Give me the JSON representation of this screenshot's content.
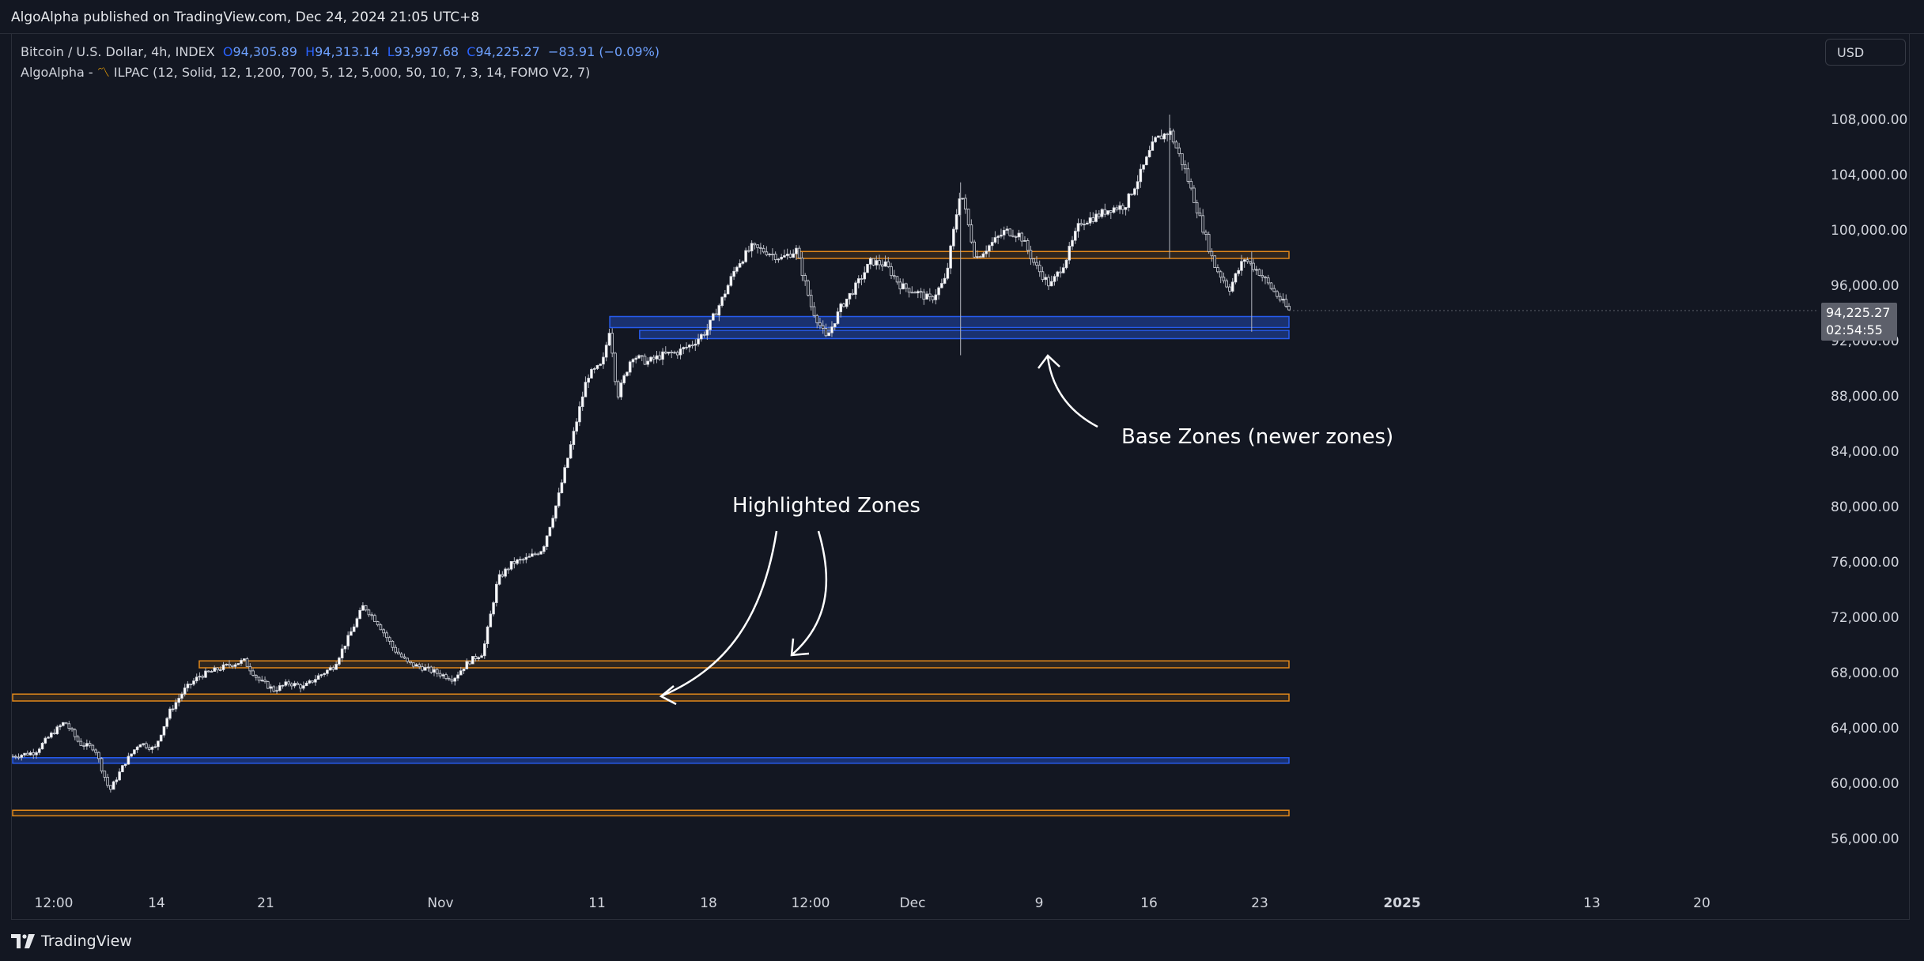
{
  "header": {
    "published": "AlgoAlpha published on TradingView.com, Dec 24, 2024 21:05 UTC+8"
  },
  "legend": {
    "symbol": "Bitcoin / U.S. Dollar, 4h, INDEX",
    "open_label": "O",
    "open": "94,305.89",
    "high_label": "H",
    "high": "94,313.14",
    "low_label": "L",
    "low": "93,997.68",
    "close_label": "C",
    "close": "94,225.27",
    "change": "−83.91 (−0.09%)",
    "indicator_prefix": "AlgoAlpha -",
    "indicator_icon": "indicator-wave-icon",
    "indicator": "ILPAC (12, Solid, 12, 1,200, 700, 5, 12, 5,000, 50, 10, 7, 3, 14, FOMO V2, 7)"
  },
  "toolbar": {
    "currency": "USD"
  },
  "price_axis": {
    "labels": [
      "108,000.00",
      "104,000.00",
      "100,000.00",
      "96,000.00",
      "92,000.00",
      "88,000.00",
      "84,000.00",
      "80,000.00",
      "76,000.00",
      "72,000.00",
      "68,000.00",
      "64,000.00",
      "60,000.00",
      "56,000.00"
    ]
  },
  "last_price": {
    "price": "94,225.27",
    "countdown": "02:54:55"
  },
  "time_axis": {
    "labels": [
      {
        "text": "12:00",
        "bold": false
      },
      {
        "text": "14",
        "bold": false
      },
      {
        "text": "21",
        "bold": false
      },
      {
        "text": "Nov",
        "bold": false
      },
      {
        "text": "11",
        "bold": false
      },
      {
        "text": "18",
        "bold": false
      },
      {
        "text": "12:00",
        "bold": false
      },
      {
        "text": "Dec",
        "bold": false
      },
      {
        "text": "9",
        "bold": false
      },
      {
        "text": "16",
        "bold": false
      },
      {
        "text": "23",
        "bold": false
      },
      {
        "text": "2025",
        "bold": true
      },
      {
        "text": "13",
        "bold": false
      },
      {
        "text": "20",
        "bold": false
      }
    ]
  },
  "annotations": {
    "highlighted": "Highlighted Zones",
    "base": "Base Zones (newer zones)"
  },
  "footer": {
    "brand": "TradingView"
  },
  "colors": {
    "background": "#131722",
    "highlighted_zone": "#f7931a",
    "base_zone": "#2962ff",
    "candle": "#d1d4dc"
  },
  "chart_data": {
    "type": "candlestick",
    "title": "Bitcoin / U.S. Dollar, 4h, INDEX",
    "ylim": [
      53000,
      112000
    ],
    "price_path": [
      [
        0,
        62000
      ],
      [
        3,
        62300
      ],
      [
        5,
        63500
      ],
      [
        7,
        64500
      ],
      [
        9,
        62900
      ],
      [
        11,
        62600
      ],
      [
        12,
        61000
      ],
      [
        13,
        59500
      ],
      [
        15,
        61500
      ],
      [
        17,
        63000
      ],
      [
        19,
        62500
      ],
      [
        21,
        65200
      ],
      [
        23,
        66800
      ],
      [
        25,
        67800
      ],
      [
        27,
        68200
      ],
      [
        29,
        68600
      ],
      [
        31,
        68900
      ],
      [
        33,
        67500
      ],
      [
        35,
        66800
      ],
      [
        37,
        67300
      ],
      [
        39,
        67000
      ],
      [
        41,
        67800
      ],
      [
        43,
        68500
      ],
      [
        45,
        70600
      ],
      [
        47,
        72900
      ],
      [
        49,
        71600
      ],
      [
        51,
        69800
      ],
      [
        53,
        68700
      ],
      [
        55,
        68400
      ],
      [
        57,
        68000
      ],
      [
        59,
        67600
      ],
      [
        61,
        68800
      ],
      [
        63,
        69500
      ],
      [
        65,
        74800
      ],
      [
        67,
        76000
      ],
      [
        69,
        76300
      ],
      [
        71,
        77000
      ],
      [
        73,
        80500
      ],
      [
        75,
        85000
      ],
      [
        77,
        89500
      ],
      [
        79,
        90300
      ],
      [
        80,
        93000
      ],
      [
        81,
        88000
      ],
      [
        83,
        91000
      ],
      [
        85,
        90500
      ],
      [
        87,
        91000
      ],
      [
        89,
        91200
      ],
      [
        91,
        91800
      ],
      [
        93,
        92800
      ],
      [
        95,
        95000
      ],
      [
        97,
        97500
      ],
      [
        99,
        98800
      ],
      [
        101,
        98500
      ],
      [
        103,
        98000
      ],
      [
        105,
        98600
      ],
      [
        107,
        94500
      ],
      [
        109,
        92200
      ],
      [
        111,
        94500
      ],
      [
        113,
        96000
      ],
      [
        115,
        97800
      ],
      [
        117,
        97500
      ],
      [
        119,
        96000
      ],
      [
        121,
        95600
      ],
      [
        123,
        95000
      ],
      [
        125,
        96500
      ],
      [
        127,
        103000
      ],
      [
        129,
        98000
      ],
      [
        131,
        99000
      ],
      [
        133,
        100000
      ],
      [
        135,
        99700
      ],
      [
        137,
        97500
      ],
      [
        139,
        96000
      ],
      [
        141,
        97800
      ],
      [
        143,
        100600
      ],
      [
        145,
        101000
      ],
      [
        147,
        101600
      ],
      [
        149,
        101800
      ],
      [
        151,
        104000
      ],
      [
        153,
        106500
      ],
      [
        155,
        107200
      ],
      [
        157,
        104500
      ],
      [
        159,
        101000
      ],
      [
        161,
        97500
      ],
      [
        163,
        95800
      ],
      [
        165,
        98000
      ],
      [
        167,
        97000
      ],
      [
        169,
        95600
      ],
      [
        171,
        94225
      ]
    ],
    "zones": [
      {
        "kind": "highlighted",
        "low": 98000,
        "high": 98500,
        "from_index": 105,
        "to_index": 171
      },
      {
        "kind": "base",
        "low": 93000,
        "high": 93800,
        "from_index": 80,
        "to_index": 171
      },
      {
        "kind": "base",
        "low": 92200,
        "high": 92800,
        "from_index": 84,
        "to_index": 171
      },
      {
        "kind": "highlighted",
        "low": 68400,
        "high": 68900,
        "from_index": 25,
        "to_index": 171
      },
      {
        "kind": "highlighted",
        "low": 66000,
        "high": 66500,
        "from_index": 0,
        "to_index": 171
      },
      {
        "kind": "base",
        "low": 61500,
        "high": 61900,
        "from_index": 0,
        "to_index": 171
      },
      {
        "kind": "highlighted",
        "low": 57700,
        "high": 58100,
        "from_index": 0,
        "to_index": 171
      }
    ],
    "last_price": 94225.27,
    "grid": false,
    "legend_position": "top-left"
  }
}
